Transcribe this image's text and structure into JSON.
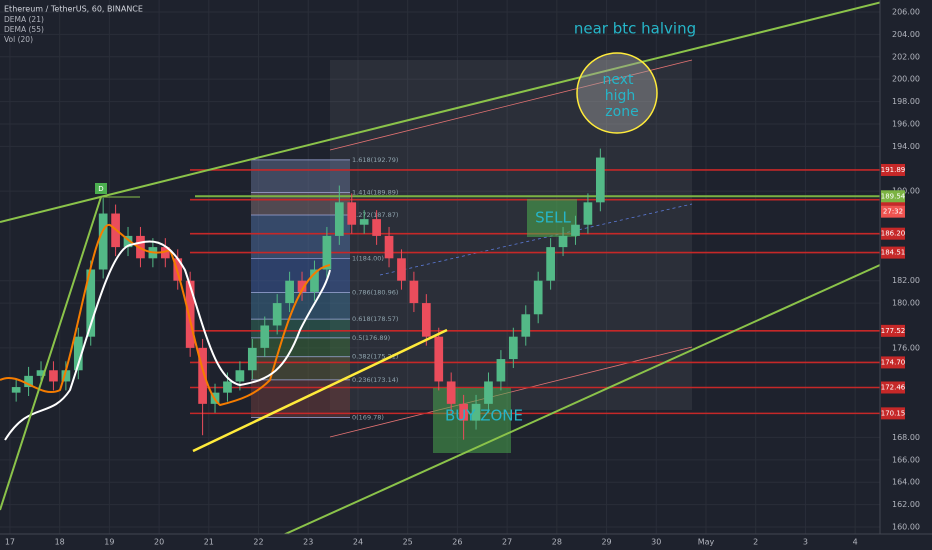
{
  "chart_data": {
    "type": "candlestick",
    "title": "Ethereum / TetherUS, 60, BINANCE",
    "indicators": [
      "DEMA (21)",
      "DEMA (55)",
      "Vol (20)"
    ],
    "x": [
      17.125,
      17.375,
      17.625,
      17.875,
      18.125,
      18.375,
      18.625,
      18.875,
      19.125,
      19.375,
      19.625,
      19.875,
      20.125,
      20.375,
      20.625,
      20.875,
      21.125,
      21.375,
      21.625,
      21.875,
      22.125,
      22.375,
      22.625,
      22.875,
      23.125,
      23.375,
      23.625,
      23.875,
      24.125,
      24.375,
      24.625,
      24.875,
      25.125,
      25.375,
      25.625,
      25.875,
      26.125,
      26.375,
      26.625,
      26.875,
      27.125,
      27.375,
      27.625,
      27.875,
      28.125,
      28.375,
      28.625,
      28.875
    ],
    "open": [
      172,
      172.5,
      173.5,
      174,
      173,
      174,
      177,
      183,
      188,
      185,
      186,
      184,
      185,
      184,
      182,
      176,
      171,
      172,
      173,
      174,
      176,
      178,
      180,
      182,
      181,
      183,
      186,
      189,
      187,
      187.5,
      186,
      184,
      182,
      180,
      177,
      173,
      171,
      169.5,
      171,
      173,
      175,
      177,
      179,
      182,
      185,
      186,
      187,
      189
    ],
    "high": [
      173.3,
      174.3,
      174.8,
      174.8,
      174.8,
      177.8,
      183.8,
      189.4,
      188.8,
      186.8,
      186.8,
      185.8,
      185.8,
      184.8,
      182.8,
      176.8,
      172.8,
      173.8,
      174.8,
      176.8,
      178.8,
      180.8,
      182.8,
      182.8,
      183.8,
      186.8,
      190.5,
      189.8,
      188.3,
      188.3,
      186.8,
      184.8,
      182.8,
      180.8,
      177.8,
      173.8,
      171.8,
      171.8,
      173.8,
      175.8,
      177.8,
      179.8,
      182.8,
      185.8,
      186.8,
      187.8,
      189.8,
      193.8
    ],
    "low": [
      171.2,
      171.7,
      172.7,
      172.2,
      172.2,
      173.2,
      176.2,
      182.2,
      184.2,
      184.2,
      183.2,
      183.2,
      183.2,
      181.2,
      175.2,
      168.2,
      170.2,
      171.2,
      172.2,
      173.2,
      175.2,
      177.2,
      179.2,
      180.2,
      180.2,
      182.2,
      185.2,
      186.2,
      186.2,
      185.2,
      183.2,
      181.2,
      179.2,
      176.2,
      172.2,
      170.2,
      167.8,
      168.7,
      170.2,
      172.2,
      174.2,
      176.2,
      178.2,
      181.2,
      184.2,
      185.2,
      186.2,
      188.2
    ],
    "close": [
      172.5,
      173.5,
      174,
      173,
      174,
      177,
      183,
      188,
      185,
      186,
      184,
      185,
      184,
      182,
      176,
      171,
      172,
      173,
      174,
      176,
      178,
      180,
      182,
      181,
      183,
      186,
      189,
      187,
      187.5,
      186,
      184,
      182,
      180,
      177,
      173,
      171,
      169.5,
      171,
      173,
      175,
      177,
      179,
      182,
      185,
      186,
      187,
      189,
      193
    ],
    "up_color": "#53b987",
    "down_color": "#eb4d5c",
    "xlim": [
      16.8,
      34.5
    ],
    "xticks": [
      17,
      18,
      19,
      20,
      21,
      22,
      23,
      24,
      25,
      26,
      27,
      28,
      29,
      30,
      {
        "value": 31,
        "label": "May"
      },
      {
        "value": 32,
        "label": "2"
      },
      {
        "value": 33,
        "label": "3"
      },
      {
        "value": 34,
        "label": "4"
      }
    ],
    "ylim": [
      160,
      206
    ],
    "yticks": [
      {
        "value": 206,
        "label": "206.00"
      },
      {
        "value": 204,
        "label": "204.00"
      },
      {
        "value": 202,
        "label": "202.00"
      },
      {
        "value": 200,
        "label": "200.00"
      },
      {
        "value": 198,
        "label": "198.00"
      },
      {
        "value": 196,
        "label": "196.00"
      },
      {
        "value": 194,
        "label": "194.00"
      },
      {
        "value": 190,
        "label": "190.00"
      },
      {
        "value": 182,
        "label": "182.00"
      },
      {
        "value": 180,
        "label": "180.00"
      },
      {
        "value": 176,
        "label": "176.00"
      },
      {
        "value": 168,
        "label": "168.00"
      },
      {
        "value": 166,
        "label": "166.00"
      },
      {
        "value": 164,
        "label": "164.00"
      },
      {
        "value": 162,
        "label": "162.00"
      },
      {
        "value": 160,
        "label": "160.00"
      }
    ],
    "price_levels": {
      "values": [
        191.89,
        189.24,
        186.2,
        184.51,
        177.52,
        174.7,
        172.46,
        170.15
      ],
      "value_labels": [
        "191.89",
        "189.24",
        "186.20",
        "184.51",
        "177.52",
        "174.70",
        "172.46",
        "170.15"
      ],
      "color": "#c62828"
    },
    "current_price": {
      "value": 189.54,
      "label": "189.54",
      "color": "#7cb342"
    },
    "countdown": "27:32",
    "fib_levels": {
      "values": [
        192.79,
        189.89,
        187.87,
        184,
        180.96,
        178.57,
        176.89,
        175.21,
        173.14,
        169.78
      ],
      "value_labels": [
        "1.618(192.79)",
        "1.414(189.89)",
        "1.272(187.87)",
        "1(184.00)",
        "0.786(180.96)",
        "0.618(178.57)",
        "0.5(176.89)",
        "0.382(175.21)",
        "0.236(173.14)",
        "0(169.78)"
      ],
      "colors": [
        "#5c6a8a",
        "#7a6a70",
        "#4a6a9a",
        "#3a5a9a",
        "#3a6a8a",
        "#2f6a5a",
        "#3a6a3a",
        "#5a5a3a",
        "#6a3a3a"
      ]
    },
    "annotations": [
      "near btc halving",
      "next",
      "high",
      "zone",
      "SELL",
      "BUY ZONE",
      "D"
    ]
  }
}
